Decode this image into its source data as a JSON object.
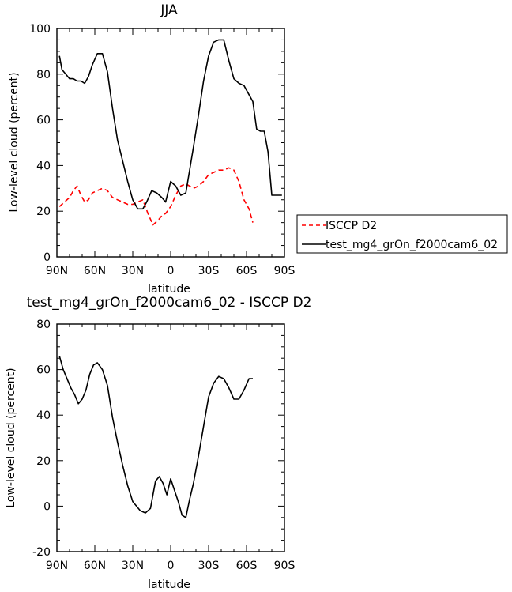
{
  "chart_data": [
    {
      "type": "line",
      "title": "JJA",
      "xlabel": "latitude",
      "ylabel": "Low-level cloud (percent)",
      "xlim": [
        -90,
        90
      ],
      "ylim": [
        0,
        100
      ],
      "xticks": [
        -90,
        -60,
        -30,
        0,
        30,
        60,
        90
      ],
      "xtick_labels": [
        "90N",
        "60N",
        "30N",
        "0",
        "30S",
        "60S",
        "90S"
      ],
      "yticks": [
        0,
        20,
        40,
        60,
        80,
        100
      ],
      "ytick_labels": [
        "0",
        "20",
        "40",
        "60",
        "80",
        "100"
      ],
      "legend_position": "right",
      "series": [
        {
          "name": "ISCCP D2",
          "color": "#ff0000",
          "style": "dashed",
          "x": [
            -88,
            -84,
            -80,
            -77,
            -74,
            -71,
            -68,
            -65,
            -62,
            -58,
            -54,
            -50,
            -46,
            -42,
            -38,
            -34,
            -30,
            -26,
            -22,
            -18,
            -14,
            -10,
            -7,
            -4,
            0,
            4,
            8,
            12,
            15,
            18,
            22,
            26,
            30,
            34,
            38,
            42,
            46,
            50,
            54,
            58,
            62,
            65
          ],
          "values": [
            22,
            24,
            26,
            29,
            31,
            27,
            24,
            25,
            28,
            29,
            30,
            29,
            26,
            25,
            24,
            23,
            23,
            24,
            25,
            19,
            14,
            16,
            18,
            19,
            22,
            27,
            31,
            32,
            31,
            30,
            31,
            33,
            36,
            37,
            38,
            38,
            39,
            38,
            33,
            25,
            21,
            15
          ]
        },
        {
          "name": "test_mg4_grOn_f2000cam6_02",
          "color": "#000000",
          "style": "solid",
          "x": [
            -88,
            -86,
            -83,
            -80,
            -77,
            -74,
            -71,
            -68,
            -65,
            -62,
            -58,
            -54,
            -50,
            -46,
            -42,
            -38,
            -34,
            -30,
            -26,
            -22,
            -19,
            -15,
            -11,
            -7,
            -4,
            0,
            4,
            8,
            12,
            15,
            18,
            22,
            26,
            30,
            34,
            38,
            42,
            46,
            50,
            54,
            58,
            62,
            65,
            68,
            71,
            74,
            77,
            80,
            83,
            86,
            88
          ],
          "values": [
            88,
            82,
            80,
            78,
            78,
            77,
            77,
            76,
            79,
            84,
            89,
            89,
            81,
            65,
            51,
            42,
            33,
            25,
            21,
            21,
            24,
            29,
            28,
            26,
            24,
            33,
            31,
            27,
            28,
            38,
            48,
            62,
            77,
            88,
            94,
            95,
            95,
            86,
            78,
            76,
            75,
            71,
            68,
            56,
            55,
            55,
            46,
            27,
            27,
            27,
            27
          ]
        }
      ]
    },
    {
      "type": "line",
      "title": "test_mg4_grOn_f2000cam6_02 - ISCCP D2",
      "xlabel": "latitude",
      "ylabel": "Low-level cloud (percent)",
      "xlim": [
        -90,
        90
      ],
      "ylim": [
        -20,
        80
      ],
      "xticks": [
        -90,
        -60,
        -30,
        0,
        30,
        60,
        90
      ],
      "xtick_labels": [
        "90N",
        "60N",
        "30N",
        "0",
        "30S",
        "60S",
        "90S"
      ],
      "yticks": [
        -20,
        0,
        20,
        40,
        60,
        80
      ],
      "ytick_labels": [
        "-20",
        "0",
        "20",
        "40",
        "60",
        "80"
      ],
      "series": [
        {
          "name": "",
          "color": "#000000",
          "style": "solid",
          "x": [
            -88,
            -85,
            -82,
            -79,
            -76,
            -73,
            -70,
            -67,
            -64,
            -61,
            -58,
            -54,
            -50,
            -46,
            -42,
            -38,
            -34,
            -30,
            -27,
            -24,
            -20,
            -16,
            -12,
            -9,
            -6,
            -3,
            0,
            3,
            6,
            9,
            12,
            15,
            18,
            22,
            26,
            30,
            34,
            38,
            42,
            46,
            50,
            54,
            58,
            62,
            65
          ],
          "values": [
            66,
            60,
            56,
            52,
            49,
            45,
            47,
            51,
            58,
            62,
            63,
            60,
            53,
            39,
            28,
            18,
            9,
            2,
            0,
            -2,
            -3,
            -1,
            11,
            13,
            10,
            5,
            12,
            7,
            2,
            -4,
            -5,
            3,
            10,
            22,
            35,
            48,
            54,
            57,
            56,
            52,
            47,
            47,
            51,
            56,
            56
          ]
        }
      ]
    }
  ]
}
